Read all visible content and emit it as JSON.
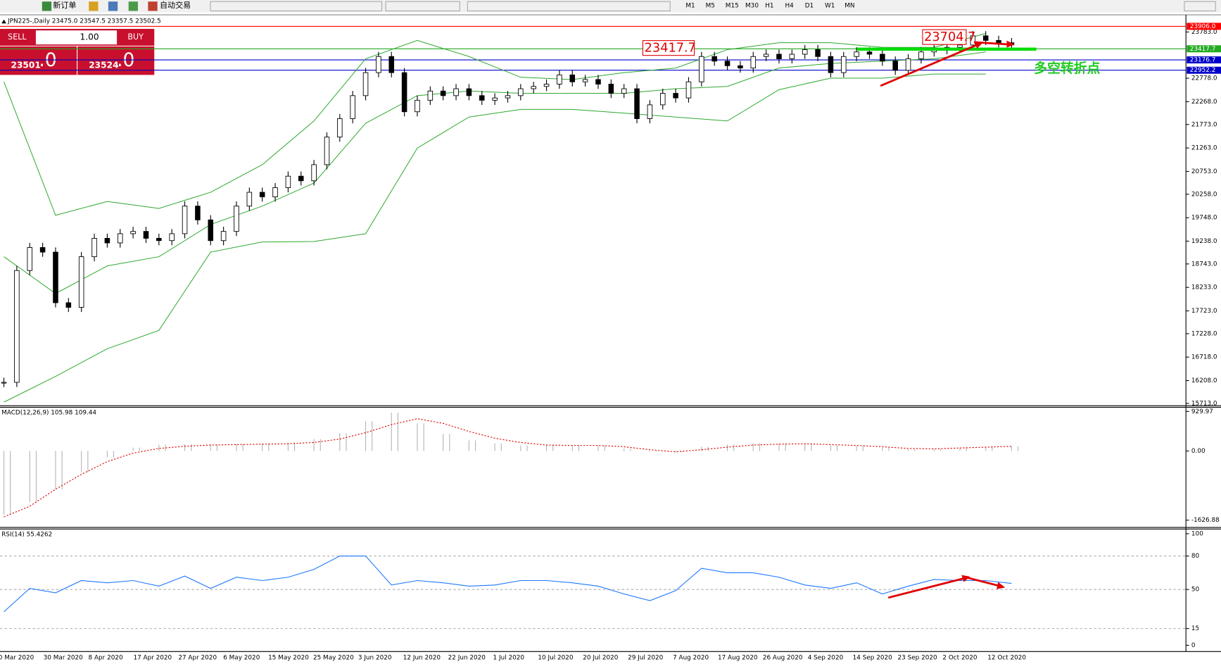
{
  "toolbar": {
    "new_order": "新订单",
    "auto_trading": "自动交易",
    "timeframes": [
      "M1",
      "M5",
      "M15",
      "M30",
      "H1",
      "H4",
      "D1",
      "W1",
      "MN"
    ]
  },
  "trade_panel": {
    "sell": "SELL",
    "buy": "BUY",
    "lot": "1.00",
    "bid_main": "23501",
    "bid_frac": ".0",
    "ask_main": "23524",
    "ask_frac": ".0"
  },
  "chart_data": [
    {
      "type": "candlestick",
      "title": "JPN225-,Daily  23475.0 23547.5 23357.5 23502.5",
      "close": [
        16170,
        18600,
        19100,
        19000,
        17900,
        17800,
        18900,
        19300,
        19200,
        19400,
        19450,
        19300,
        19250,
        19400,
        20000,
        19700,
        19250,
        19450,
        20000,
        20300,
        20200,
        20400,
        20650,
        20550,
        20900,
        21500,
        21900,
        22400,
        22900,
        23250,
        22900,
        22050,
        22300,
        22500,
        22400,
        22550,
        22400,
        22300,
        22350,
        22400,
        22550,
        22600,
        22650,
        22850,
        22700,
        22750,
        22650,
        22450,
        22550,
        21900,
        22200,
        22450,
        22350,
        22700,
        23250,
        23150,
        23050,
        23000,
        23250,
        23300,
        23200,
        23300,
        23400,
        23250,
        22900,
        23250,
        23350,
        23300,
        23150,
        22950,
        23200,
        23350,
        23400,
        23450,
        23500,
        23700,
        23600,
        23550,
        23502.5
      ],
      "upper_band": [
        22700,
        19800,
        20100,
        19950,
        20300,
        20900,
        21850,
        23200,
        23600,
        23250,
        22800,
        22750,
        22900,
        23000,
        23400,
        23550,
        23550,
        23450,
        23450,
        23750
      ],
      "middle_band": [
        18900,
        18100,
        18700,
        18900,
        19600,
        20000,
        20500,
        21800,
        22400,
        22500,
        22450,
        22450,
        22450,
        22550,
        22600,
        23000,
        23100,
        23150,
        23200,
        23350
      ],
      "lower_band": [
        15740,
        16300,
        16900,
        17300,
        19000,
        19220,
        19230,
        19400,
        21260,
        21935,
        22100,
        22100,
        22020,
        21935,
        21850,
        22530,
        22780,
        22780,
        22870,
        22870
      ],
      "band_color": "#2ea82e",
      "ylim": [
        15679,
        24139
      ],
      "yticks": [
        {
          "value": 23783,
          "label": "23783.0"
        },
        {
          "value": 22778,
          "label": "22778.0"
        },
        {
          "value": 22268,
          "label": "22268.0"
        },
        {
          "value": 21773,
          "label": "21773.0"
        },
        {
          "value": 21263,
          "label": "21263.0"
        },
        {
          "value": 20753,
          "label": "20753.0"
        },
        {
          "value": 20258,
          "label": "20258.0"
        },
        {
          "value": 19748,
          "label": "19748.0"
        },
        {
          "value": 19238,
          "label": "19238.0"
        },
        {
          "value": 18743,
          "label": "18743.0"
        },
        {
          "value": 18233,
          "label": "18233.0"
        },
        {
          "value": 17723,
          "label": "17723.0"
        },
        {
          "value": 17228,
          "label": "17228.0"
        },
        {
          "value": 16718,
          "label": "16718.0"
        },
        {
          "value": 16208,
          "label": "16208.0"
        },
        {
          "value": 15713,
          "label": "15713.0"
        }
      ],
      "hlines": [
        {
          "value": 23906,
          "label": "23906.0",
          "color": "#ff0000"
        },
        {
          "value": 23417.7,
          "label": "23417.7",
          "color": "#22aa22"
        },
        {
          "value": 23176.7,
          "label": "23176.7",
          "color": "#0000c8"
        },
        {
          "value": 22952.2,
          "label": "22952.2",
          "color": "#0000c8"
        }
      ],
      "annotations": [
        "23417.7",
        "23704.7",
        "多空转折点"
      ]
    },
    {
      "type": "macd",
      "title": "MACD(12,26,9) 105.98 109.44",
      "histogram": [
        -1500,
        -1200,
        -900,
        -500,
        -150,
        80,
        150,
        160,
        160,
        170,
        180,
        200,
        280,
        420,
        700,
        900,
        650,
        400,
        250,
        180,
        130,
        150,
        140,
        130,
        60,
        -20,
        -30,
        100,
        150,
        180,
        180,
        180,
        130,
        120,
        80,
        40,
        50,
        80,
        100,
        106
      ],
      "signal": [
        -1550,
        -1300,
        -900,
        -550,
        -250,
        -50,
        60,
        110,
        140,
        150,
        160,
        170,
        200,
        280,
        430,
        620,
        760,
        650,
        460,
        300,
        200,
        140,
        130,
        130,
        100,
        30,
        -20,
        30,
        90,
        140,
        160,
        170,
        150,
        130,
        100,
        60,
        50,
        70,
        90,
        109
      ],
      "histogram_color": "#b4b4b4",
      "signal_color": "#e00000",
      "ylim": [
        -1780,
        1009
      ],
      "yticks": [
        929.97,
        {
          "value": 0,
          "label": "0.00"
        },
        -1626.88
      ]
    },
    {
      "type": "line",
      "title": "RSI(14) 55.4262",
      "values": [
        30,
        51,
        47,
        58,
        56,
        58,
        53,
        62,
        51,
        61,
        58,
        61,
        68,
        80,
        80,
        54,
        58,
        56,
        53,
        54,
        58,
        58,
        56,
        53,
        46,
        40,
        49,
        69,
        65,
        65,
        61,
        54,
        51,
        56,
        46,
        53,
        59,
        58,
        58,
        55.4262
      ],
      "color": "#1e78ff",
      "ylim": [
        -4.9,
        103.5
      ],
      "yticks": [
        100,
        80,
        50,
        15,
        0
      ],
      "levels": [
        80,
        50,
        15
      ],
      "x_labels": [
        "0 Mar 2020",
        "30 Mar 2020",
        "8 Apr 2020",
        "17 Apr 2020",
        "27 Apr 2020",
        "6 May 2020",
        "15 May 2020",
        "25 May 2020",
        "3 Jun 2020",
        "12 Jun 2020",
        "22 Jun 2020",
        "1 Jul 2020",
        "10 Jul 2020",
        "20 Jul 2020",
        "29 Jul 2020",
        "7 Aug 2020",
        "17 Aug 2020",
        "26 Aug 2020",
        "4 Sep 2020",
        "14 Sep 2020",
        "23 Sep 2020",
        "2 Oct 2020",
        "12 Oct 2020"
      ]
    }
  ]
}
